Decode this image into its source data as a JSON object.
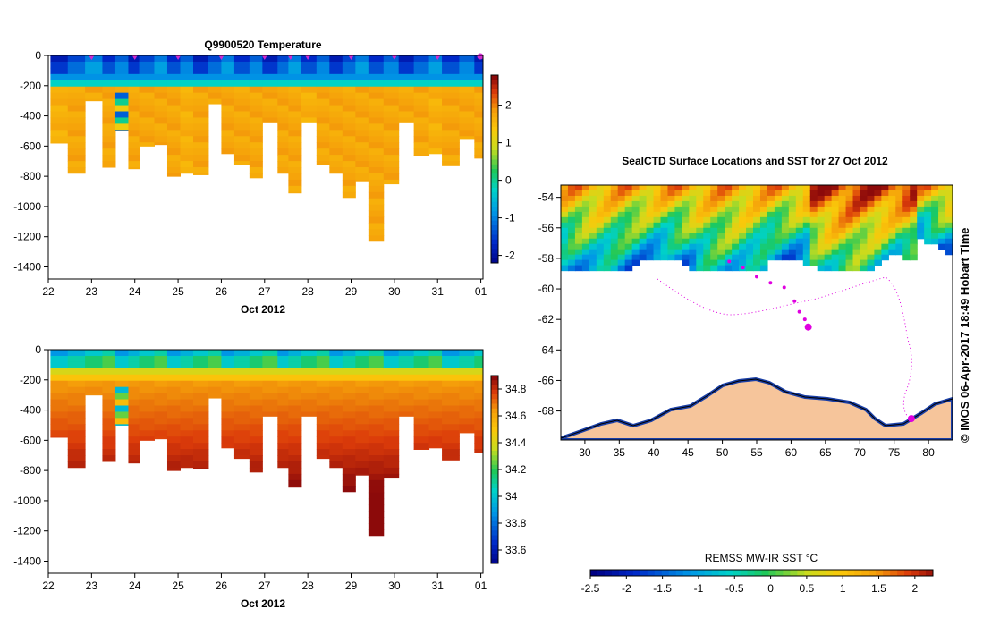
{
  "chart_data": [
    {
      "type": "heatmap",
      "title": "Q9900520  Temperature",
      "xlabel": "Oct 2012",
      "ylabel": "",
      "x_ticks": [
        "22",
        "23",
        "24",
        "25",
        "26",
        "27",
        "28",
        "29",
        "30",
        "31",
        "01"
      ],
      "xlim": [
        22,
        32.05
      ],
      "y_ticks": [
        0,
        -200,
        -400,
        -600,
        -800,
        -1000,
        -1200,
        -1400
      ],
      "ylim": [
        -1480,
        0
      ],
      "colorbar": {
        "ticks": [
          2,
          1,
          0,
          -1,
          -2
        ],
        "range": [
          -2.2,
          2.8
        ]
      },
      "profile_days": [
        22.05,
        22.45,
        22.85,
        23.25,
        23.55,
        23.85,
        24.1,
        24.45,
        24.75,
        25.05,
        25.35,
        25.7,
        26.0,
        26.3,
        26.65,
        26.95,
        27.3,
        27.55,
        27.85,
        28.2,
        28.5,
        28.8,
        29.1,
        29.4,
        29.75,
        30.1,
        30.45,
        30.8,
        31.1,
        31.5,
        31.85
      ],
      "max_depths": [
        -580,
        -780,
        -300,
        -740,
        -500,
        -750,
        -600,
        -590,
        -800,
        -780,
        -790,
        -320,
        -650,
        -720,
        -810,
        -440,
        -780,
        -910,
        -440,
        -720,
        -780,
        -940,
        -830,
        -1230,
        -850,
        -440,
        -660,
        -650,
        -730,
        -550,
        -680
      ],
      "marker_days": [
        23,
        24,
        25,
        26,
        27,
        28,
        29,
        30,
        31
      ],
      "markers_near": [
        23.0,
        23.0,
        24.0,
        25.0,
        26.0,
        27.0,
        27.6,
        28.0,
        29.0,
        30.0,
        31.0
      ],
      "markers": "",
      "surface_layer_value": -1.6,
      "deep_layer_value": 1.6
    },
    {
      "type": "heatmap",
      "title": "",
      "xlabel": "Oct 2012",
      "x_ticks": [
        "22",
        "23",
        "24",
        "25",
        "26",
        "27",
        "28",
        "29",
        "30",
        "31",
        "01"
      ],
      "xlim": [
        22,
        32.05
      ],
      "y_ticks": [
        0,
        -200,
        -400,
        -600,
        -800,
        -1000,
        -1200,
        -1400
      ],
      "ylim": [
        -1480,
        0
      ],
      "colorbar": {
        "ticks": [
          34.8,
          34.6,
          34.4,
          34.2,
          34,
          33.8,
          33.6
        ],
        "range": [
          33.5,
          34.9
        ]
      }
    },
    {
      "type": "map",
      "title": "SealCTD Surface Locations and SST for 27 Oct 2012",
      "x_ticks": [
        30,
        35,
        40,
        45,
        50,
        55,
        60,
        65,
        70,
        75,
        80
      ],
      "xlim": [
        26.5,
        83.5
      ],
      "y_ticks": [
        -54,
        -56,
        -58,
        -60,
        -62,
        -64,
        -66,
        -68
      ],
      "ylim": [
        -69.9,
        -53.2
      ],
      "colorbar": {
        "label": "REMSS MW-IR SST °C",
        "ticks": [
          "-2.5",
          "-2",
          "-1.5",
          "-1",
          "-0.5",
          "0",
          "0.5",
          "1",
          "1.5",
          "2"
        ],
        "range": [
          -2.5,
          2.25
        ]
      },
      "highlight_points": [
        [
          62.5,
          -62.5
        ],
        [
          77.5,
          -68.5
        ]
      ],
      "track_points": [
        [
          51,
          -58.2
        ],
        [
          53,
          -58.6
        ],
        [
          55,
          -59.2
        ],
        [
          57,
          -59.6
        ],
        [
          59,
          -59.9
        ],
        [
          60.5,
          -60.8
        ],
        [
          61.2,
          -61.5
        ],
        [
          62,
          -62.0
        ],
        [
          62.5,
          -62.5
        ]
      ]
    }
  ],
  "footer_note": "© IMOS 06-Apr-2017 18:49 Hobart Time"
}
